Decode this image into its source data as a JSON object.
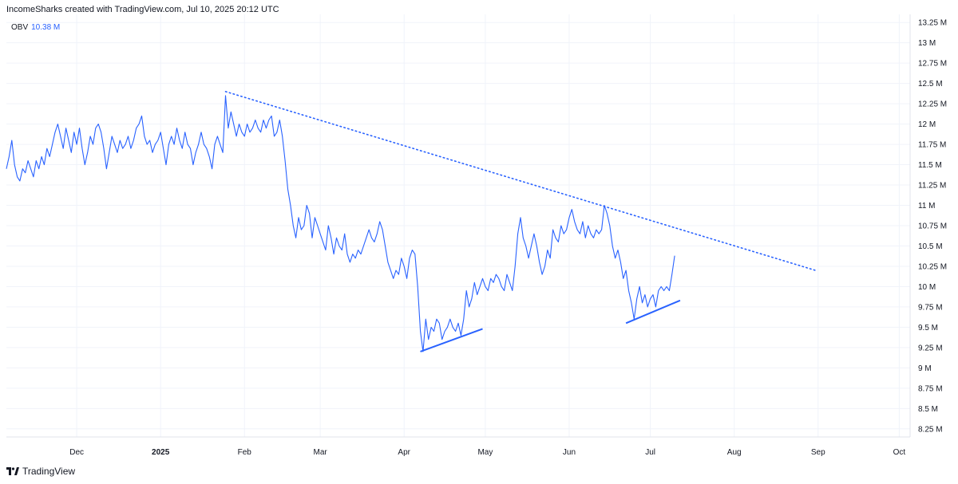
{
  "header": {
    "text": "IncomeSharks created with TradingView.com, Jul 10, 2025 20:12 UTC"
  },
  "legend": {
    "name": "OBV",
    "value": "10.38 M"
  },
  "brand": {
    "text": "TradingView",
    "icon": "tradingview-logo-icon"
  },
  "colors": {
    "line": "#2962ff",
    "grid": "#f0f3fa",
    "text": "#131722"
  },
  "chart_data": {
    "type": "line",
    "title": "",
    "series_name": "OBV",
    "ylabel": "",
    "ylim": [
      8.15,
      13.35
    ],
    "y_ticks": [
      {
        "v": 13.25,
        "label": "13.25 M"
      },
      {
        "v": 13,
        "label": "13 M"
      },
      {
        "v": 12.75,
        "label": "12.75 M"
      },
      {
        "v": 12.5,
        "label": "12.5 M"
      },
      {
        "v": 12.25,
        "label": "12.25 M"
      },
      {
        "v": 12,
        "label": "12 M"
      },
      {
        "v": 11.75,
        "label": "11.75 M"
      },
      {
        "v": 11.5,
        "label": "11.5 M"
      },
      {
        "v": 11.25,
        "label": "11.25 M"
      },
      {
        "v": 11,
        "label": "11 M"
      },
      {
        "v": 10.75,
        "label": "10.75 M"
      },
      {
        "v": 10.5,
        "label": "10.5 M"
      },
      {
        "v": 10.25,
        "label": "10.25 M"
      },
      {
        "v": 10,
        "label": "10 M"
      },
      {
        "v": 9.75,
        "label": "9.75 M"
      },
      {
        "v": 9.5,
        "label": "9.5 M"
      },
      {
        "v": 9.25,
        "label": "9.25 M"
      },
      {
        "v": 9,
        "label": "9 M"
      },
      {
        "v": 8.75,
        "label": "8.75 M"
      },
      {
        "v": 8.5,
        "label": "8.5 M"
      },
      {
        "v": 8.25,
        "label": "8.25 M"
      }
    ],
    "x_range": [
      "2024-11-05",
      "2025-10-05"
    ],
    "x_ticks": [
      {
        "date": "2024-12-01",
        "label": "Dec",
        "bold": false
      },
      {
        "date": "2025-01-01",
        "label": "2025",
        "bold": true
      },
      {
        "date": "2025-02-01",
        "label": "Feb",
        "bold": false
      },
      {
        "date": "2025-03-01",
        "label": "Mar",
        "bold": false
      },
      {
        "date": "2025-04-01",
        "label": "Apr",
        "bold": false
      },
      {
        "date": "2025-05-01",
        "label": "May",
        "bold": false
      },
      {
        "date": "2025-06-01",
        "label": "Jun",
        "bold": false
      },
      {
        "date": "2025-07-01",
        "label": "Jul",
        "bold": false
      },
      {
        "date": "2025-08-01",
        "label": "Aug",
        "bold": false
      },
      {
        "date": "2025-09-01",
        "label": "Sep",
        "bold": false
      },
      {
        "date": "2025-10-01",
        "label": "Oct",
        "bold": false
      }
    ],
    "series": [
      [
        "2024-11-05",
        11.45
      ],
      [
        "2024-11-06",
        11.6
      ],
      [
        "2024-11-07",
        11.8
      ],
      [
        "2024-11-08",
        11.5
      ],
      [
        "2024-11-09",
        11.35
      ],
      [
        "2024-11-10",
        11.3
      ],
      [
        "2024-11-11",
        11.45
      ],
      [
        "2024-11-12",
        11.4
      ],
      [
        "2024-11-13",
        11.55
      ],
      [
        "2024-11-14",
        11.45
      ],
      [
        "2024-11-15",
        11.35
      ],
      [
        "2024-11-16",
        11.55
      ],
      [
        "2024-11-17",
        11.45
      ],
      [
        "2024-11-18",
        11.6
      ],
      [
        "2024-11-19",
        11.5
      ],
      [
        "2024-11-20",
        11.7
      ],
      [
        "2024-11-21",
        11.6
      ],
      [
        "2024-11-22",
        11.75
      ],
      [
        "2024-11-23",
        11.9
      ],
      [
        "2024-11-24",
        12.0
      ],
      [
        "2024-11-25",
        11.85
      ],
      [
        "2024-11-26",
        11.7
      ],
      [
        "2024-11-27",
        11.95
      ],
      [
        "2024-11-28",
        11.8
      ],
      [
        "2024-11-29",
        11.65
      ],
      [
        "2024-11-30",
        11.9
      ],
      [
        "2024-12-01",
        11.75
      ],
      [
        "2024-12-02",
        11.95
      ],
      [
        "2024-12-03",
        11.7
      ],
      [
        "2024-12-04",
        11.5
      ],
      [
        "2024-12-05",
        11.65
      ],
      [
        "2024-12-06",
        11.85
      ],
      [
        "2024-12-07",
        11.75
      ],
      [
        "2024-12-08",
        11.95
      ],
      [
        "2024-12-09",
        12.0
      ],
      [
        "2024-12-10",
        11.9
      ],
      [
        "2024-12-11",
        11.7
      ],
      [
        "2024-12-12",
        11.45
      ],
      [
        "2024-12-13",
        11.65
      ],
      [
        "2024-12-14",
        11.85
      ],
      [
        "2024-12-15",
        11.75
      ],
      [
        "2024-12-16",
        11.65
      ],
      [
        "2024-12-17",
        11.8
      ],
      [
        "2024-12-18",
        11.7
      ],
      [
        "2024-12-19",
        11.75
      ],
      [
        "2024-12-20",
        11.85
      ],
      [
        "2024-12-21",
        11.7
      ],
      [
        "2024-12-22",
        11.8
      ],
      [
        "2024-12-23",
        11.95
      ],
      [
        "2024-12-24",
        12.0
      ],
      [
        "2024-12-25",
        12.1
      ],
      [
        "2024-12-26",
        11.85
      ],
      [
        "2024-12-27",
        11.75
      ],
      [
        "2024-12-28",
        11.8
      ],
      [
        "2024-12-29",
        11.65
      ],
      [
        "2024-12-30",
        11.75
      ],
      [
        "2024-12-31",
        11.8
      ],
      [
        "2025-01-01",
        11.9
      ],
      [
        "2025-01-02",
        11.7
      ],
      [
        "2025-01-03",
        11.5
      ],
      [
        "2025-01-04",
        11.75
      ],
      [
        "2025-01-05",
        11.85
      ],
      [
        "2025-01-06",
        11.75
      ],
      [
        "2025-01-07",
        11.95
      ],
      [
        "2025-01-08",
        11.8
      ],
      [
        "2025-01-09",
        11.7
      ],
      [
        "2025-01-10",
        11.9
      ],
      [
        "2025-01-11",
        11.75
      ],
      [
        "2025-01-12",
        11.7
      ],
      [
        "2025-01-13",
        11.5
      ],
      [
        "2025-01-14",
        11.65
      ],
      [
        "2025-01-15",
        11.75
      ],
      [
        "2025-01-16",
        11.9
      ],
      [
        "2025-01-17",
        11.75
      ],
      [
        "2025-01-18",
        11.7
      ],
      [
        "2025-01-19",
        11.6
      ],
      [
        "2025-01-20",
        11.45
      ],
      [
        "2025-01-21",
        11.75
      ],
      [
        "2025-01-22",
        11.85
      ],
      [
        "2025-01-23",
        11.75
      ],
      [
        "2025-01-24",
        11.65
      ],
      [
        "2025-01-25",
        12.35
      ],
      [
        "2025-01-26",
        11.95
      ],
      [
        "2025-01-27",
        12.15
      ],
      [
        "2025-01-28",
        12.0
      ],
      [
        "2025-01-29",
        11.85
      ],
      [
        "2025-01-30",
        12.0
      ],
      [
        "2025-01-31",
        11.9
      ],
      [
        "2025-02-01",
        11.85
      ],
      [
        "2025-02-02",
        12.0
      ],
      [
        "2025-02-03",
        11.9
      ],
      [
        "2025-02-04",
        11.95
      ],
      [
        "2025-02-05",
        12.05
      ],
      [
        "2025-02-06",
        11.95
      ],
      [
        "2025-02-07",
        11.9
      ],
      [
        "2025-02-08",
        12.05
      ],
      [
        "2025-02-09",
        11.95
      ],
      [
        "2025-02-10",
        12.05
      ],
      [
        "2025-02-11",
        12.1
      ],
      [
        "2025-02-12",
        11.85
      ],
      [
        "2025-02-13",
        11.9
      ],
      [
        "2025-02-14",
        12.05
      ],
      [
        "2025-02-15",
        11.85
      ],
      [
        "2025-02-16",
        11.55
      ],
      [
        "2025-02-17",
        11.2
      ],
      [
        "2025-02-18",
        11.0
      ],
      [
        "2025-02-19",
        10.75
      ],
      [
        "2025-02-20",
        10.6
      ],
      [
        "2025-02-21",
        10.85
      ],
      [
        "2025-02-22",
        10.7
      ],
      [
        "2025-02-23",
        10.75
      ],
      [
        "2025-02-24",
        11.0
      ],
      [
        "2025-02-25",
        10.9
      ],
      [
        "2025-02-26",
        10.6
      ],
      [
        "2025-02-27",
        10.85
      ],
      [
        "2025-02-28",
        10.75
      ],
      [
        "2025-03-01",
        10.65
      ],
      [
        "2025-03-02",
        10.55
      ],
      [
        "2025-03-03",
        10.45
      ],
      [
        "2025-03-04",
        10.75
      ],
      [
        "2025-03-05",
        10.6
      ],
      [
        "2025-03-06",
        10.4
      ],
      [
        "2025-03-07",
        10.6
      ],
      [
        "2025-03-08",
        10.5
      ],
      [
        "2025-03-09",
        10.45
      ],
      [
        "2025-03-10",
        10.65
      ],
      [
        "2025-03-11",
        10.4
      ],
      [
        "2025-03-12",
        10.3
      ],
      [
        "2025-03-13",
        10.4
      ],
      [
        "2025-03-14",
        10.35
      ],
      [
        "2025-03-15",
        10.45
      ],
      [
        "2025-03-16",
        10.4
      ],
      [
        "2025-03-17",
        10.5
      ],
      [
        "2025-03-18",
        10.6
      ],
      [
        "2025-03-19",
        10.7
      ],
      [
        "2025-03-20",
        10.6
      ],
      [
        "2025-03-21",
        10.55
      ],
      [
        "2025-03-22",
        10.65
      ],
      [
        "2025-03-23",
        10.8
      ],
      [
        "2025-03-24",
        10.7
      ],
      [
        "2025-03-25",
        10.5
      ],
      [
        "2025-03-26",
        10.3
      ],
      [
        "2025-03-27",
        10.2
      ],
      [
        "2025-03-28",
        10.1
      ],
      [
        "2025-03-29",
        10.2
      ],
      [
        "2025-03-30",
        10.15
      ],
      [
        "2025-03-31",
        10.35
      ],
      [
        "2025-04-01",
        10.25
      ],
      [
        "2025-04-02",
        10.1
      ],
      [
        "2025-04-03",
        10.35
      ],
      [
        "2025-04-04",
        10.45
      ],
      [
        "2025-04-05",
        10.4
      ],
      [
        "2025-04-06",
        10.0
      ],
      [
        "2025-04-07",
        9.45
      ],
      [
        "2025-04-08",
        9.2
      ],
      [
        "2025-04-09",
        9.6
      ],
      [
        "2025-04-10",
        9.35
      ],
      [
        "2025-04-11",
        9.5
      ],
      [
        "2025-04-12",
        9.45
      ],
      [
        "2025-04-13",
        9.6
      ],
      [
        "2025-04-14",
        9.55
      ],
      [
        "2025-04-15",
        9.35
      ],
      [
        "2025-04-16",
        9.45
      ],
      [
        "2025-04-17",
        9.5
      ],
      [
        "2025-04-18",
        9.6
      ],
      [
        "2025-04-19",
        9.5
      ],
      [
        "2025-04-20",
        9.45
      ],
      [
        "2025-04-21",
        9.55
      ],
      [
        "2025-04-22",
        9.4
      ],
      [
        "2025-04-23",
        9.6
      ],
      [
        "2025-04-24",
        9.95
      ],
      [
        "2025-04-25",
        9.75
      ],
      [
        "2025-04-26",
        9.85
      ],
      [
        "2025-04-27",
        10.05
      ],
      [
        "2025-04-28",
        9.9
      ],
      [
        "2025-04-29",
        10.0
      ],
      [
        "2025-04-30",
        10.1
      ],
      [
        "2025-05-01",
        10.0
      ],
      [
        "2025-05-02",
        9.95
      ],
      [
        "2025-05-03",
        10.1
      ],
      [
        "2025-05-04",
        10.05
      ],
      [
        "2025-05-05",
        10.15
      ],
      [
        "2025-05-06",
        10.1
      ],
      [
        "2025-05-07",
        10.0
      ],
      [
        "2025-05-08",
        9.95
      ],
      [
        "2025-05-09",
        10.15
      ],
      [
        "2025-05-10",
        10.05
      ],
      [
        "2025-05-11",
        9.95
      ],
      [
        "2025-05-12",
        10.25
      ],
      [
        "2025-05-13",
        10.65
      ],
      [
        "2025-05-14",
        10.85
      ],
      [
        "2025-05-15",
        10.6
      ],
      [
        "2025-05-16",
        10.5
      ],
      [
        "2025-05-17",
        10.35
      ],
      [
        "2025-05-18",
        10.5
      ],
      [
        "2025-05-19",
        10.65
      ],
      [
        "2025-05-20",
        10.5
      ],
      [
        "2025-05-21",
        10.3
      ],
      [
        "2025-05-22",
        10.15
      ],
      [
        "2025-05-23",
        10.25
      ],
      [
        "2025-05-24",
        10.45
      ],
      [
        "2025-05-25",
        10.35
      ],
      [
        "2025-05-26",
        10.7
      ],
      [
        "2025-05-27",
        10.6
      ],
      [
        "2025-05-28",
        10.55
      ],
      [
        "2025-05-29",
        10.75
      ],
      [
        "2025-05-30",
        10.65
      ],
      [
        "2025-05-31",
        10.7
      ],
      [
        "2025-06-01",
        10.85
      ],
      [
        "2025-06-02",
        10.95
      ],
      [
        "2025-06-03",
        10.8
      ],
      [
        "2025-06-04",
        10.7
      ],
      [
        "2025-06-05",
        10.65
      ],
      [
        "2025-06-06",
        10.8
      ],
      [
        "2025-06-07",
        10.6
      ],
      [
        "2025-06-08",
        10.75
      ],
      [
        "2025-06-09",
        10.65
      ],
      [
        "2025-06-10",
        10.6
      ],
      [
        "2025-06-11",
        10.7
      ],
      [
        "2025-06-12",
        10.65
      ],
      [
        "2025-06-13",
        10.7
      ],
      [
        "2025-06-14",
        11.0
      ],
      [
        "2025-06-15",
        10.9
      ],
      [
        "2025-06-16",
        10.75
      ],
      [
        "2025-06-17",
        10.5
      ],
      [
        "2025-06-18",
        10.35
      ],
      [
        "2025-06-19",
        10.45
      ],
      [
        "2025-06-20",
        10.3
      ],
      [
        "2025-06-21",
        10.1
      ],
      [
        "2025-06-22",
        10.2
      ],
      [
        "2025-06-23",
        9.95
      ],
      [
        "2025-06-24",
        9.8
      ],
      [
        "2025-06-25",
        9.6
      ],
      [
        "2025-06-26",
        9.85
      ],
      [
        "2025-06-27",
        10.0
      ],
      [
        "2025-06-28",
        9.8
      ],
      [
        "2025-06-29",
        9.9
      ],
      [
        "2025-06-30",
        9.75
      ],
      [
        "2025-07-01",
        9.85
      ],
      [
        "2025-07-02",
        9.9
      ],
      [
        "2025-07-03",
        9.75
      ],
      [
        "2025-07-04",
        9.95
      ],
      [
        "2025-07-05",
        10.0
      ],
      [
        "2025-07-06",
        9.95
      ],
      [
        "2025-07-07",
        10.0
      ],
      [
        "2025-07-08",
        9.95
      ],
      [
        "2025-07-09",
        10.15
      ],
      [
        "2025-07-10",
        10.38
      ]
    ],
    "annotations": {
      "dotted_trendline": [
        [
          "2025-01-25",
          12.4
        ],
        [
          "2025-08-31",
          10.2
        ]
      ],
      "support_lines": [
        [
          [
            "2025-04-07",
            9.2
          ],
          [
            "2025-04-30",
            9.48
          ]
        ],
        [
          [
            "2025-06-22",
            9.55
          ],
          [
            "2025-07-12",
            9.83
          ]
        ]
      ]
    }
  }
}
